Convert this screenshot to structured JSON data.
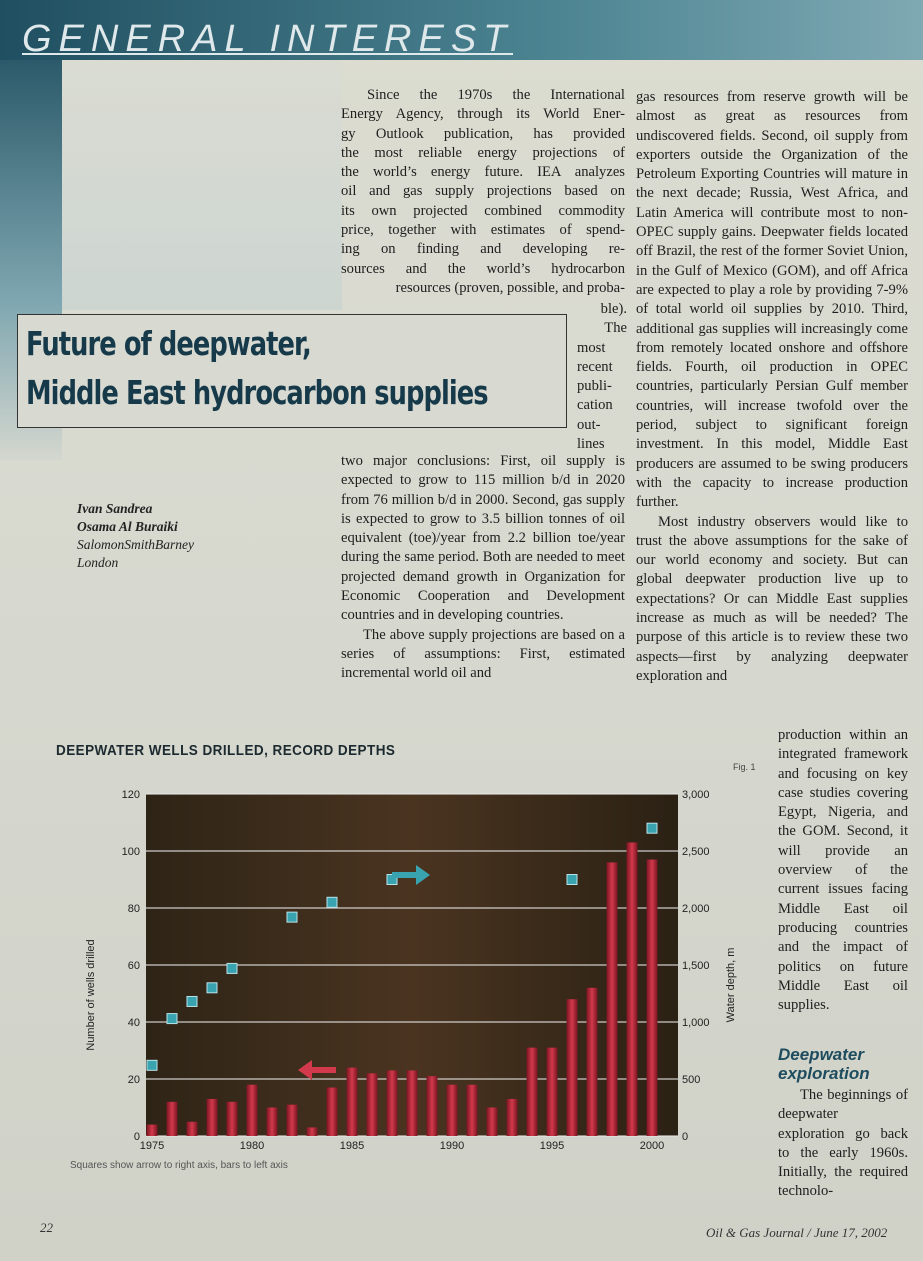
{
  "section_header": "GENERAL INTEREST",
  "title": {
    "line1": "Future of deepwater,",
    "line2": "Middle East hydrocarbon supplies"
  },
  "authors": {
    "name1": "Ivan Sandrea",
    "name2": "Osama Al Buraiki",
    "affiliation": "SalomonSmithBarney",
    "city": "London"
  },
  "col1": {
    "lines": [
      "Since the 1970s the International",
      "Energy Agency, through its World Ener-",
      "gy Outlook publication, has provided",
      "the most reliable energy projections of",
      "the world’s energy future. IEA analyzes",
      "oil and gas supply projections based on",
      "its own projected combined commodity",
      "price, together with estimates of spend-",
      "ing on finding and developing re-",
      "sources and the world’s hydrocarbon",
      "resources (proven, possible, and proba-"
    ],
    "wrap": [
      "ble).",
      "The",
      "most",
      "recent",
      "publi-",
      "cation",
      "out-",
      "lines"
    ],
    "p1_end": "two major conclusions: First, oil supply is expected to grow to 115 million b/d in 2020 from 76 million b/d in 2000. Second, gas supply is expected to grow to 3.5 billion tonnes of oil equivalent (toe)/year from 2.2 billion toe/year during the same period. Both are needed to meet projected demand growth in Organization for Economic Cooperation and Development countries and in developing countries.",
    "p2": "The above supply projections are based on a series of assumptions: First, estimated incremental world oil and"
  },
  "col2": {
    "p1": "gas resources from reserve growth will be almost as great as resources from undiscovered fields. Second, oil supply from exporters outside the Organization of the Petroleum Exporting Countries will mature in the next decade; Russia, West Africa, and Latin America will contribute most to non-OPEC supply gains. Deepwater fields located off Brazil, the rest of the former Soviet Union, in the Gulf of Mexico (GOM), and off Africa are expected to play a role by providing 7-9% of total world oil supplies by 2010. Third, additional gas supplies will increasingly come from remotely located onshore and offshore fields. Fourth, oil production in OPEC countries, particularly Persian Gulf member countries, will increase twofold over the period, subject to significant foreign investment. In this model, Middle East producers are assumed to be swing producers with the capacity to increase production further.",
    "p2": "Most industry observers would like to trust the above assumptions for the sake of our world economy and society. But can global deepwater production live up to expectations? Or can Middle East supplies increase as much as will be needed? The purpose of this article is to review these two aspects—first by analyzing deepwater exploration and"
  },
  "col3": {
    "p1": "production within an integrated framework and focusing on key case studies covering Egypt, Nigeria, and the GOM. Second, it will provide an overview of the current issues facing Middle East oil producing countries and the impact of politics on future Middle East oil supplies.",
    "subhead": "Deepwater exploration",
    "p2": "The beginnings of deepwater exploration go back to the early 1960s. Initially, the required technolo-"
  },
  "figure": {
    "title": "DEEPWATER WELLS DRILLED, RECORD DEPTHS",
    "label": "Fig. 1",
    "note": "Squares show arrow to right axis, bars to left axis"
  },
  "chart_data": {
    "type": "bar",
    "title": "DEEPWATER WELLS DRILLED, RECORD DEPTHS",
    "x": [
      1975,
      1976,
      1977,
      1978,
      1979,
      1980,
      1981,
      1982,
      1983,
      1984,
      1985,
      1986,
      1987,
      1988,
      1989,
      1990,
      1991,
      1992,
      1993,
      1994,
      1995,
      1996,
      1997,
      1998,
      1999,
      2000
    ],
    "x_ticks": [
      1975,
      1980,
      1985,
      1990,
      1995,
      2000
    ],
    "series": [
      {
        "axis": "left",
        "kind": "bar",
        "values": [
          4,
          12,
          5,
          13,
          12,
          18,
          10,
          11,
          3,
          17,
          24,
          22,
          23,
          23,
          21,
          18,
          18,
          10,
          13,
          31,
          31,
          48,
          52,
          96,
          103,
          97
        ]
      },
      {
        "axis": "right",
        "kind": "square",
        "points": [
          [
            1975,
            620
          ],
          [
            1976,
            1030
          ],
          [
            1977,
            1180
          ],
          [
            1978,
            1300
          ],
          [
            1979,
            1470
          ],
          [
            1982,
            1920
          ],
          [
            1984,
            2050
          ],
          [
            1987,
            2250
          ],
          [
            1996,
            2250
          ],
          [
            2000,
            2700
          ]
        ]
      }
    ],
    "ylabel_left": "Number of wells drilled",
    "ylabel_right": "Water depth, m",
    "ylim_left": [
      0,
      120
    ],
    "yticks_left": [
      0,
      20,
      40,
      60,
      80,
      100,
      120
    ],
    "ylim_right": [
      0,
      3000
    ],
    "yticks_right": [
      "0",
      "500",
      "1,000",
      "1,500",
      "2,000",
      "2,500",
      "3,000"
    ],
    "grid": true,
    "colors": {
      "bar": "#b8273a",
      "square": "#3aa3b0",
      "plot_bg": "#3a2a1a",
      "grid": "#e8e8e8"
    }
  },
  "footer": {
    "folio": "22",
    "journal": "Oil & Gas Journal / June 17, 2002"
  }
}
